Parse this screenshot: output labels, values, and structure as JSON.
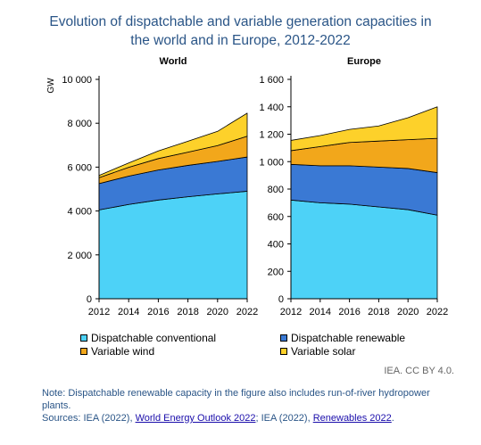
{
  "title_line1": "Evolution of dispatchable and variable generation capacities in",
  "title_line2": "the world and in Europe, 2012-2022",
  "unit_label": "GW",
  "colors": {
    "dispatchable_conventional": "#4dd2f7",
    "dispatchable_renewable": "#3a79d4",
    "variable_wind": "#f2a71b",
    "variable_solar": "#fdd12a",
    "axis": "#000000"
  },
  "chart_data": [
    {
      "type": "area",
      "stacked": true,
      "title": "World",
      "ylabel": "GW",
      "ylim": [
        0,
        10000
      ],
      "yticks": [
        0,
        2000,
        4000,
        6000,
        8000,
        10000
      ],
      "ytick_labels": [
        "0",
        "2 000",
        "4 000",
        "6 000",
        "8 000",
        "10 000"
      ],
      "xlim": [
        2012,
        2022
      ],
      "xticks": [
        2012,
        2014,
        2016,
        2018,
        2020,
        2022
      ],
      "x": [
        2012,
        2014,
        2016,
        2018,
        2020,
        2022
      ],
      "series": [
        {
          "name": "Dispatchable conventional",
          "values": [
            4050,
            4300,
            4500,
            4650,
            4780,
            4900
          ]
        },
        {
          "name": "Dispatchable renewable",
          "values": [
            1200,
            1290,
            1370,
            1430,
            1480,
            1560
          ]
        },
        {
          "name": "Variable wind",
          "values": [
            270,
            400,
            520,
            600,
            720,
            950
          ]
        },
        {
          "name": "Variable solar",
          "values": [
            100,
            200,
            350,
            500,
            650,
            1050
          ]
        }
      ]
    },
    {
      "type": "area",
      "stacked": true,
      "title": "Europe",
      "ylim": [
        0,
        1600
      ],
      "yticks": [
        0,
        200,
        400,
        600,
        800,
        1000,
        1200,
        1400,
        1600
      ],
      "ytick_labels": [
        "0",
        "200",
        "400",
        "600",
        "800",
        "1 000",
        "1 200",
        "1 400",
        "1 600"
      ],
      "xlim": [
        2012,
        2022
      ],
      "xticks": [
        2012,
        2014,
        2016,
        2018,
        2020,
        2022
      ],
      "x": [
        2012,
        2014,
        2016,
        2018,
        2020,
        2022
      ],
      "series": [
        {
          "name": "Dispatchable conventional",
          "values": [
            720,
            700,
            690,
            670,
            650,
            610
          ]
        },
        {
          "name": "Dispatchable renewable",
          "values": [
            260,
            270,
            280,
            290,
            300,
            310
          ]
        },
        {
          "name": "Variable wind",
          "values": [
            100,
            140,
            170,
            190,
            210,
            250
          ]
        },
        {
          "name": "Variable solar",
          "values": [
            75,
            80,
            95,
            110,
            160,
            230
          ]
        }
      ]
    }
  ],
  "legend": [
    {
      "label": "Dispatchable conventional",
      "key": "dispatchable_conventional"
    },
    {
      "label": "Dispatchable renewable",
      "key": "dispatchable_renewable"
    },
    {
      "label": "Variable wind",
      "key": "variable_wind"
    },
    {
      "label": "Variable solar",
      "key": "variable_solar"
    }
  ],
  "source_credit": "IEA. CC BY 4.0.",
  "note": {
    "line": "Note: Dispatchable renewable capacity in the figure also includes run-of-river hydropower plants.",
    "sources_prefix": "Sources: IEA (2022), ",
    "link1": "World Energy Outlook 2022",
    "mid": "; IEA (2022), ",
    "link2": "Renewables 2022",
    "end": "."
  }
}
